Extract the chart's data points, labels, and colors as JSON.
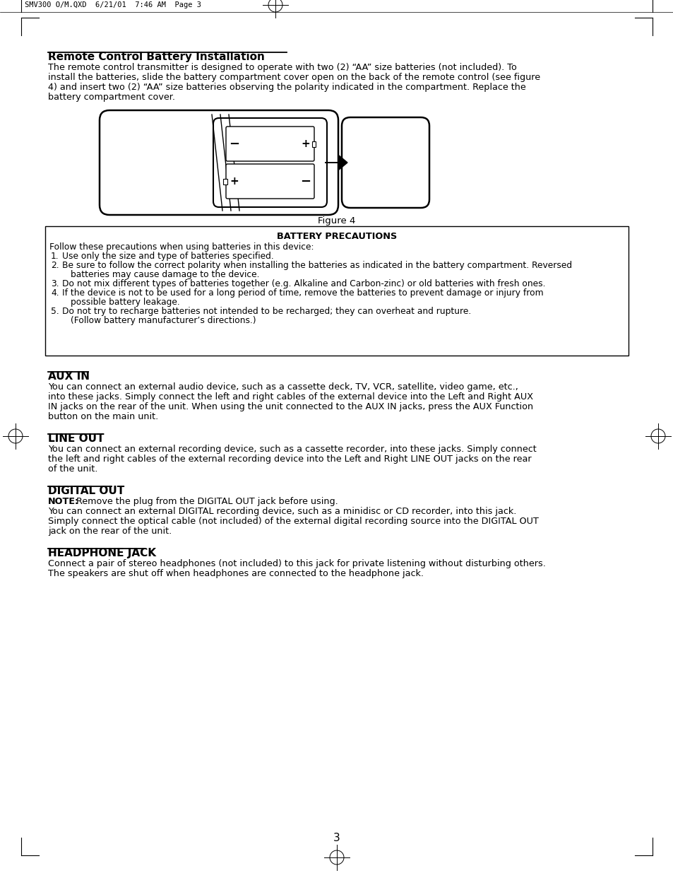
{
  "header_text": "SMV300 O/M.QXD  6/21/01  7:46 AM  Page 3",
  "title": "Remote Control Battery Installation",
  "para1_lines": [
    "The remote control transmitter is designed to operate with two (2) “AA” size batteries (not included). To",
    "install the batteries, slide the battery compartment cover open on the back of the remote control (see figure",
    "4) and insert two (2) “AA” size batteries observing the polarity indicated in the compartment. Replace the",
    "battery compartment cover."
  ],
  "figure_caption": "Figure 4",
  "box_title": "BATTERY PRECAUTIONS",
  "box_intro": "Follow these precautions when using batteries in this device:",
  "box_item1": "Use only the size and type of batteries specified.",
  "box_item2a": "Be sure to follow the correct polarity when installing the batteries as indicated in the battery compartment. Reversed",
  "box_item2b": "batteries may cause damage to the device.",
  "box_item3": "Do not mix different types of batteries together (e.g. Alkaline and Carbon-zinc) or old batteries with fresh ones.",
  "box_item4a": "If the device is not to be used for a long period of time, remove the batteries to prevent damage or injury from",
  "box_item4b": "possible battery leakage.",
  "box_item5a": "Do not try to recharge batteries not intended to be recharged; they can overheat and rupture.",
  "box_item5b": "(Follow battery manufacturer’s directions.)",
  "aux_in_title": "AUX IN",
  "aux_in_lines": [
    "You can connect an external audio device, such as a cassette deck, TV, VCR, satellite, video game, etc.,",
    "into these jacks. Simply connect the left and right cables of the external device into the Left and Right AUX",
    "IN jacks on the rear of the unit. When using the unit connected to the AUX IN jacks, press the AUX Function",
    "button on the main unit."
  ],
  "line_out_title": "LINE OUT",
  "line_out_lines": [
    "You can connect an external recording device, such as a cassette recorder, into these jacks. Simply connect",
    "the left and right cables of the external recording device into the Left and Right LINE OUT jacks on the rear",
    "of the unit."
  ],
  "digital_out_title": "DIGITAL OUT",
  "digital_out_note_bold": "NOTE:",
  "digital_out_note_rest": " Remove the plug from the DIGITAL OUT jack before using.",
  "digital_out_lines": [
    "You can connect an external DIGITAL recording device, such as a minidisc or CD recorder, into this jack.",
    "Simply connect the optical cable (not included) of the external digital recording source into the DIGITAL OUT",
    "jack on the rear of the unit."
  ],
  "headphone_title": "HEADPHONE JACK",
  "headphone_lines": [
    "Connect a pair of stereo headphones (not included) to this jack for private listening without disturbing others.",
    "The speakers are shut off when headphones are connected to the headphone jack."
  ],
  "page_number": "3",
  "bg_color": "#ffffff",
  "text_color": "#000000"
}
